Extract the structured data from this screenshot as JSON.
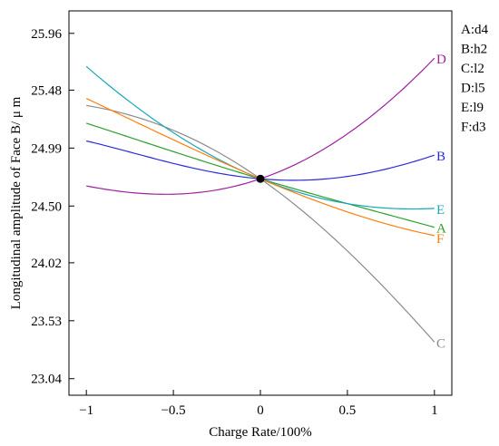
{
  "chart_data": {
    "type": "line",
    "title": "",
    "xlabel": "Charge Rate/100%",
    "ylabel": "Longitudinal amplitude of Face B/ μ m",
    "xlim": [
      -1.1,
      1.1
    ],
    "ylim": [
      22.9,
      26.15
    ],
    "x_ticks": [
      -1,
      -0.5,
      0,
      0.5,
      1
    ],
    "x_tick_labels": [
      "−1",
      "−0.5",
      "0",
      "0.5",
      "1"
    ],
    "y_ticks": [
      23.04,
      23.53,
      24.02,
      24.5,
      24.99,
      25.48,
      25.96
    ],
    "y_tick_labels": [
      "23.04",
      "23.53",
      "24.02",
      "24.50",
      "24.99",
      "25.48",
      "25.96"
    ],
    "grid": false,
    "legend_position": "right",
    "legend": [
      "A:d4",
      "B:h2",
      "C:l2",
      "D:l5",
      "E:l9",
      "F:d3"
    ],
    "center_point": {
      "x": 0,
      "y": 24.73
    },
    "series": [
      {
        "name": "A",
        "color": "#2ca02c",
        "x": [
          -1,
          -0.5,
          0,
          0.5,
          1
        ],
        "y": [
          25.2,
          24.96,
          24.73,
          24.52,
          24.32
        ]
      },
      {
        "name": "B",
        "color": "#2b2bdc",
        "x": [
          -1,
          -0.5,
          0,
          0.5,
          1
        ],
        "y": [
          25.05,
          24.86,
          24.73,
          24.75,
          24.93
        ]
      },
      {
        "name": "C",
        "color": "#8c8c8c",
        "x": [
          -1,
          -0.5,
          0,
          0.5,
          1
        ],
        "y": [
          25.35,
          25.14,
          24.73,
          24.12,
          23.35
        ]
      },
      {
        "name": "D",
        "color": "#a020a0",
        "x": [
          -1,
          -0.5,
          0,
          0.5,
          1
        ],
        "y": [
          24.67,
          24.6,
          24.73,
          25.11,
          25.75
        ]
      },
      {
        "name": "E",
        "color": "#17a8b8",
        "x": [
          -1,
          -0.5,
          0,
          0.5,
          1
        ],
        "y": [
          25.68,
          25.12,
          24.73,
          24.52,
          24.48
        ]
      },
      {
        "name": "F",
        "color": "#ff7f0e",
        "x": [
          -1,
          -0.5,
          0,
          0.5,
          1
        ],
        "y": [
          25.41,
          25.06,
          24.73,
          24.45,
          24.25
        ]
      }
    ]
  }
}
